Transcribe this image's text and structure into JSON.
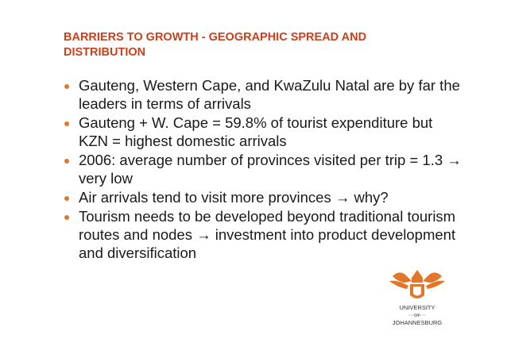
{
  "slide": {
    "title": "BARRIERS TO GROWTH - GEOGRAPHIC SPREAD AND DISTRIBUTION",
    "bullets": [
      "Gauteng, Western Cape, and KwaZulu Natal are by far the leaders in terms of arrivals",
      "Gauteng + W. Cape = 59.8% of tourist expenditure but KZN = highest domestic arrivals",
      "2006: average number of provinces visited per trip = 1.3 → very low",
      "Air arrivals tend to visit more provinces → why?",
      "Tourism needs to be developed beyond traditional tourism routes and nodes → investment into product development and diversification"
    ],
    "logo": {
      "line1": "UNIVERSITY",
      "line2": "OF",
      "line3": "JOHANNESBURG"
    }
  }
}
